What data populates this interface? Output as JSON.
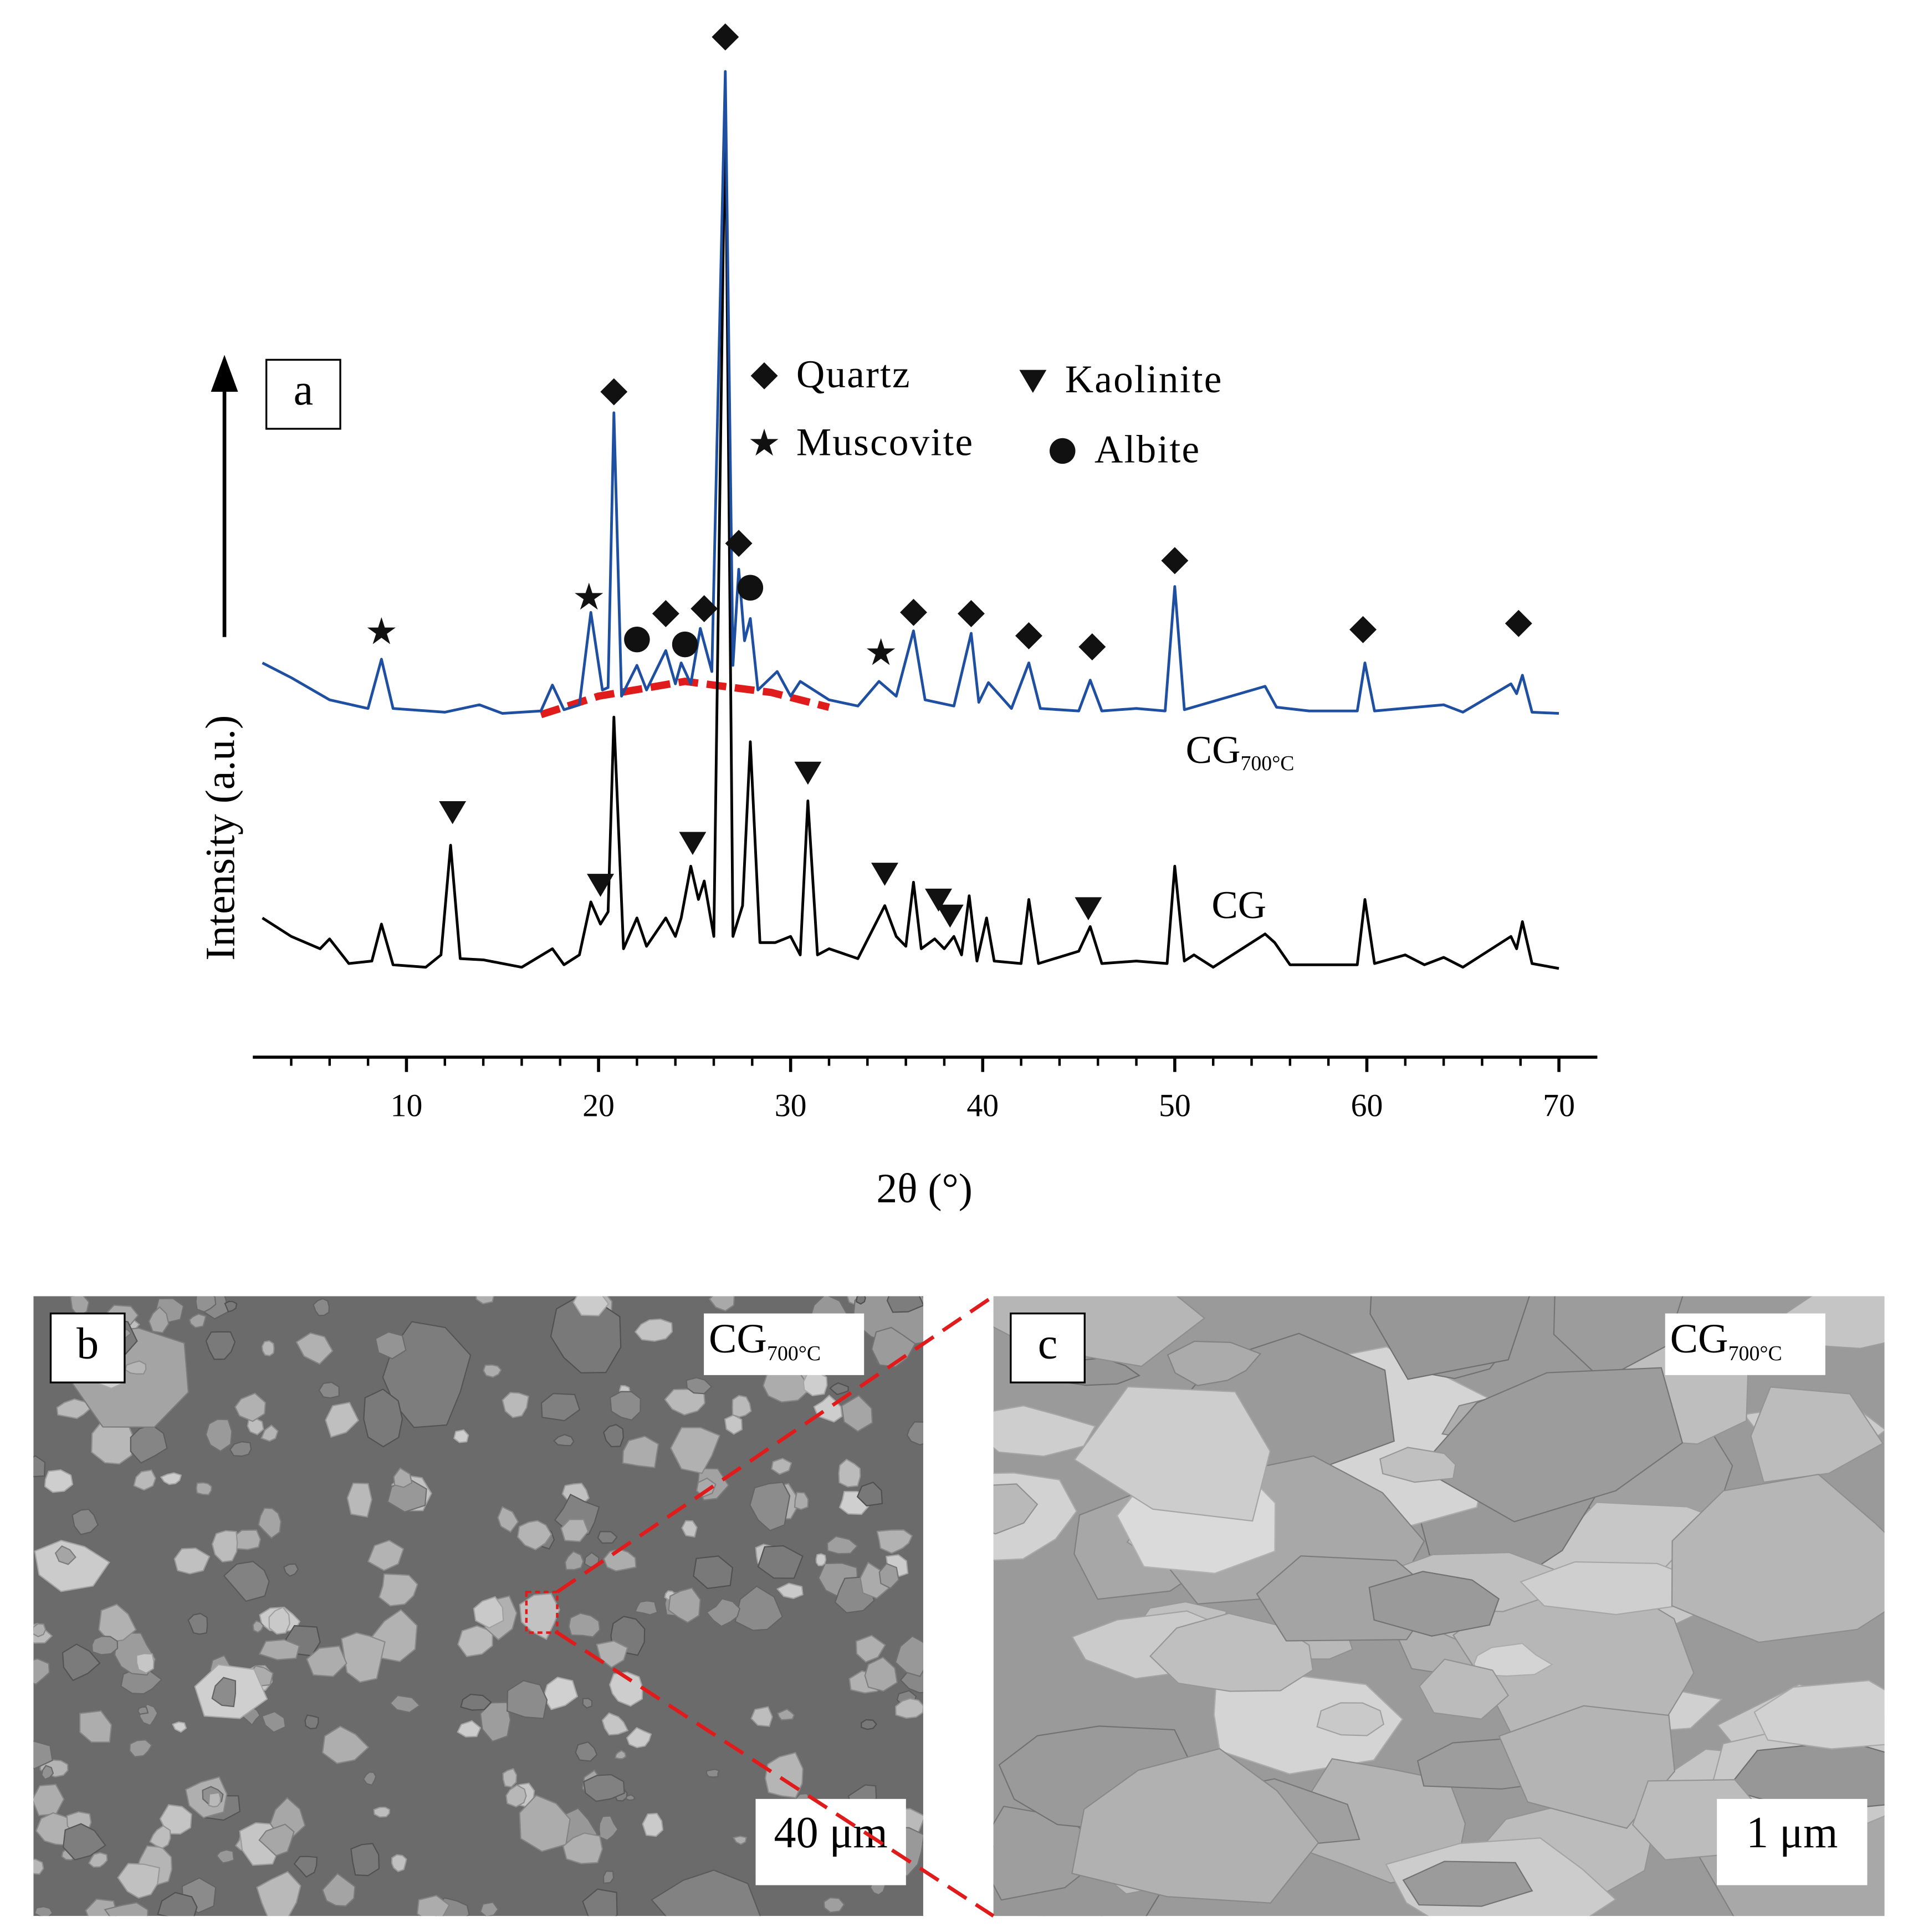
{
  "chart_data": {
    "type": "line",
    "panel_label": "a",
    "x_label": "2θ (°)",
    "y_label": "Intensity (a.u.)",
    "xlim": [
      2,
      72
    ],
    "xticks": [
      10,
      20,
      30,
      40,
      50,
      60,
      70
    ],
    "xminorticks": [
      4,
      6,
      8,
      12,
      14,
      16,
      18,
      22,
      24,
      26,
      28,
      32,
      34,
      36,
      38,
      42,
      44,
      46,
      48,
      52,
      54,
      56,
      58,
      62,
      64,
      66,
      68
    ],
    "ylim": [
      0,
      830
    ],
    "series": [
      {
        "name": "CG",
        "subscript": "700°C",
        "color": "#1f4fa0",
        "x": [
          2.5,
          4,
          6,
          8,
          8.7,
          9.3,
          12,
          13.8,
          15,
          17,
          17.6,
          18.2,
          19,
          19.6,
          20.2,
          20.5,
          20.8,
          21.2,
          22.0,
          22.5,
          23.5,
          24.0,
          24.3,
          24.8,
          25.3,
          25.9,
          26.6,
          27.0,
          27.3,
          27.6,
          27.9,
          28.3,
          29.3,
          30,
          30.5,
          32,
          33.5,
          34.6,
          35.5,
          36.4,
          37,
          38.5,
          39.4,
          39.8,
          40.3,
          41.5,
          42.4,
          43,
          45,
          45.6,
          46.2,
          48,
          49.5,
          50.0,
          50.5,
          54.7,
          55.3,
          57,
          59.5,
          59.9,
          60.4,
          64,
          65,
          67.5,
          67.8,
          68.1,
          68.6,
          70
        ],
        "values": [
          320,
          308,
          290,
          283,
          323,
          283,
          280,
          286,
          279,
          281,
          302,
          282,
          286,
          361,
          298,
          300,
          523,
          293,
          318,
          298,
          330,
          303,
          320,
          303,
          348,
          313,
          800,
          318,
          396,
          338,
          356,
          298,
          313,
          293,
          305,
          290,
          285,
          305,
          293,
          346,
          290,
          285,
          344,
          288,
          304,
          283,
          320,
          283,
          281,
          306,
          281,
          283,
          281,
          382,
          282,
          301,
          284,
          281,
          281,
          320,
          281,
          286,
          280,
          303,
          295,
          310,
          280,
          279
        ]
      },
      {
        "name": "CG",
        "color": "#000000",
        "x": [
          2.5,
          4,
          5.5,
          6,
          7,
          8.2,
          8.7,
          9.3,
          11,
          11.8,
          12.3,
          12.8,
          14,
          16,
          17.6,
          18.2,
          19,
          19.6,
          20.1,
          20.5,
          20.8,
          21.3,
          22.0,
          22.5,
          23.5,
          24.0,
          24.3,
          24.8,
          25.2,
          25.5,
          26.0,
          26.6,
          27.0,
          27.5,
          27.9,
          28.4,
          29.2,
          30.0,
          30.5,
          30.9,
          31.4,
          32,
          33.5,
          34.9,
          35.5,
          36.0,
          36.4,
          36.8,
          37.5,
          38.0,
          38.5,
          38.9,
          39.3,
          39.7,
          40.2,
          40.6,
          42.0,
          42.4,
          42.9,
          45.0,
          45.6,
          46.2,
          48,
          49.6,
          50.0,
          50.5,
          51,
          52,
          54.7,
          55.2,
          56,
          59.5,
          59.9,
          60.4,
          62,
          63,
          64,
          65,
          67.5,
          67.8,
          68.1,
          68.6,
          70
        ],
        "values": [
          113,
          98,
          88,
          96,
          76,
          78,
          108,
          75,
          73,
          83,
          172,
          80,
          79,
          73,
          88,
          75,
          83,
          126,
          108,
          118,
          276,
          88,
          113,
          90,
          113,
          98,
          113,
          155,
          128,
          143,
          98,
          780,
          98,
          123,
          256,
          93,
          93,
          98,
          83,
          208,
          83,
          88,
          80,
          123,
          98,
          90,
          142,
          88,
          96,
          88,
          98,
          83,
          131,
          78,
          113,
          78,
          76,
          128,
          76,
          86,
          106,
          76,
          78,
          76,
          155,
          78,
          83,
          73,
          100,
          93,
          75,
          75,
          128,
          76,
          83,
          75,
          81,
          73,
          98,
          88,
          110,
          76,
          72
        ]
      }
    ],
    "phases": [
      {
        "name": "Quartz",
        "symbol": "diamond"
      },
      {
        "name": "Kaolinite",
        "symbol": "triangle"
      },
      {
        "name": "Muscovite",
        "symbol": "star"
      },
      {
        "name": "Albite",
        "symbol": "circle"
      }
    ],
    "markers": [
      {
        "symbol": "star",
        "x": 8.7,
        "y": 345
      },
      {
        "symbol": "star",
        "x": 19.5,
        "y": 373
      },
      {
        "symbol": "diamond",
        "x": 20.8,
        "y": 540
      },
      {
        "symbol": "circle",
        "x": 22.0,
        "y": 339
      },
      {
        "symbol": "diamond",
        "x": 23.5,
        "y": 360
      },
      {
        "symbol": "circle",
        "x": 24.5,
        "y": 335
      },
      {
        "symbol": "diamond",
        "x": 25.5,
        "y": 364
      },
      {
        "symbol": "diamond",
        "x": 26.6,
        "y": 828
      },
      {
        "symbol": "diamond",
        "x": 27.3,
        "y": 417
      },
      {
        "symbol": "circle",
        "x": 27.9,
        "y": 381
      },
      {
        "symbol": "star",
        "x": 34.7,
        "y": 328
      },
      {
        "symbol": "diamond",
        "x": 36.4,
        "y": 361
      },
      {
        "symbol": "diamond",
        "x": 39.4,
        "y": 360
      },
      {
        "symbol": "diamond",
        "x": 42.4,
        "y": 342
      },
      {
        "symbol": "diamond",
        "x": 45.7,
        "y": 333
      },
      {
        "symbol": "diamond",
        "x": 50.0,
        "y": 403
      },
      {
        "symbol": "diamond",
        "x": 59.8,
        "y": 347
      },
      {
        "symbol": "diamond",
        "x": 67.9,
        "y": 352
      },
      {
        "symbol": "triangle",
        "x": 12.4,
        "y": 199
      },
      {
        "symbol": "triangle",
        "x": 20.1,
        "y": 140
      },
      {
        "symbol": "triangle",
        "x": 24.9,
        "y": 174
      },
      {
        "symbol": "triangle",
        "x": 30.9,
        "y": 231
      },
      {
        "symbol": "triangle",
        "x": 34.9,
        "y": 149
      },
      {
        "symbol": "triangle",
        "x": 37.7,
        "y": 128
      },
      {
        "symbol": "triangle",
        "x": 38.3,
        "y": 115
      },
      {
        "symbol": "triangle",
        "x": 45.5,
        "y": 121
      }
    ],
    "amorphous_hump": {
      "color": "#e01b1b",
      "x": [
        17,
        20,
        24.5,
        29,
        32
      ],
      "y": [
        278,
        293,
        305,
        296,
        284
      ]
    }
  },
  "panels": [
    {
      "label": "b",
      "sample": "CG",
      "sample_sub": "700°C",
      "scale_bar": "40 μm"
    },
    {
      "label": "c",
      "sample": "CG",
      "sample_sub": "700°C",
      "scale_bar": "1 μm"
    }
  ]
}
